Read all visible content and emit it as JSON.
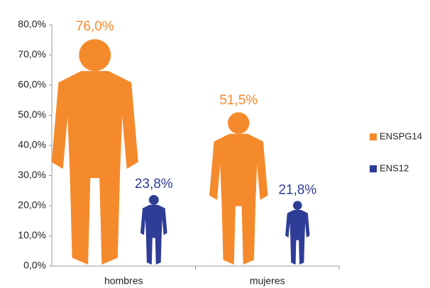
{
  "chart_data": {
    "type": "pictograph",
    "categories": [
      "hombres",
      "mujeres"
    ],
    "series": [
      {
        "name": "ENSPG14",
        "color": "#f58a2c",
        "values": [
          76.0,
          51.5
        ],
        "value_labels": [
          "76,0%",
          "51,5%"
        ]
      },
      {
        "name": "ENS12",
        "color": "#2f3d97",
        "values": [
          23.8,
          21.8
        ],
        "value_labels": [
          "23,8%",
          "21,8%"
        ]
      }
    ],
    "ylim": [
      0,
      80
    ],
    "yticks": [
      {
        "value": 0,
        "label": "0,0%"
      },
      {
        "value": 10,
        "label": "10,0%"
      },
      {
        "value": 20,
        "label": "20,0%"
      },
      {
        "value": 30,
        "label": "30,0%"
      },
      {
        "value": 40,
        "label": "40,0%"
      },
      {
        "value": 50,
        "label": "50,0%"
      },
      {
        "value": 60,
        "label": "60,0%"
      },
      {
        "value": 70,
        "label": "70,0%"
      },
      {
        "value": 80,
        "label": "80,0%"
      }
    ],
    "grid": false,
    "legend": "right"
  }
}
